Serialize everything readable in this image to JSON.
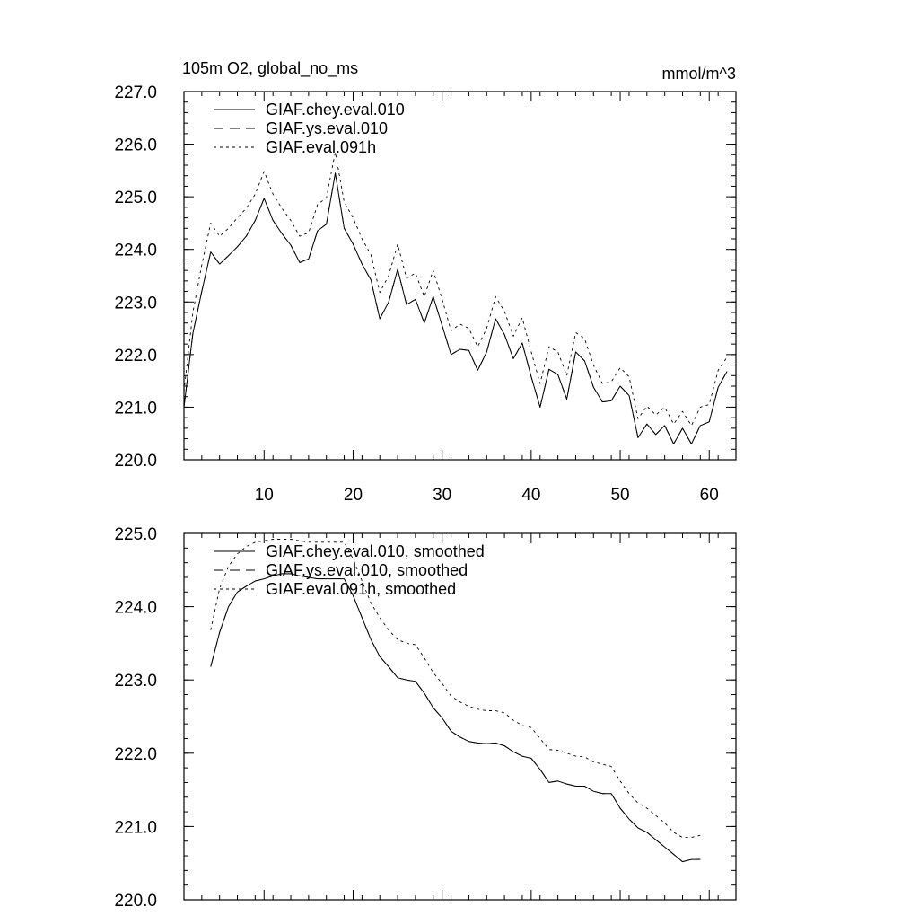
{
  "chart_data": [
    {
      "type": "line",
      "title": "105m O2, global_no_ms",
      "units": "mmol/m^3",
      "xlabel": "",
      "ylabel": "",
      "xlim": [
        1,
        63
      ],
      "ylim": [
        220.0,
        227.0
      ],
      "xticks": [
        10,
        20,
        30,
        40,
        50,
        60
      ],
      "yticks": [
        220.0,
        221.0,
        222.0,
        223.0,
        224.0,
        225.0,
        226.0,
        227.0
      ],
      "ytick_labels": [
        "220.0",
        "221.0",
        "222.0",
        "223.0",
        "224.0",
        "225.0",
        "226.0",
        "227.0"
      ],
      "legend_position": "top-left",
      "grid": false,
      "series": [
        {
          "name": "GIAF.chey.eval.010",
          "style": "solid",
          "x": [
            1,
            2,
            3,
            4,
            5,
            6,
            7,
            8,
            9,
            10,
            11,
            12,
            13,
            14,
            15,
            16,
            17,
            18,
            19,
            20,
            21,
            22,
            23,
            24,
            25,
            26,
            27,
            28,
            29,
            30,
            31,
            32,
            33,
            34,
            35,
            36,
            37,
            38,
            39,
            40,
            41,
            42,
            43,
            44,
            45,
            46,
            47,
            48,
            49,
            50,
            51,
            52,
            53,
            54,
            55,
            56,
            57,
            58,
            59,
            60,
            61,
            62
          ],
          "y": [
            221.0,
            222.4,
            223.2,
            223.95,
            223.72,
            223.88,
            224.05,
            224.25,
            224.55,
            224.97,
            224.55,
            224.3,
            224.08,
            223.75,
            223.82,
            224.35,
            224.48,
            225.45,
            224.4,
            224.1,
            223.72,
            223.42,
            222.68,
            223.0,
            223.62,
            222.95,
            223.05,
            222.6,
            223.1,
            222.55,
            222.0,
            222.1,
            222.08,
            221.7,
            222.05,
            222.68,
            222.38,
            221.92,
            222.22,
            221.58,
            221.0,
            221.72,
            221.62,
            221.15,
            222.05,
            221.88,
            221.38,
            221.1,
            221.12,
            221.4,
            221.22,
            220.42,
            220.68,
            220.48,
            220.65,
            220.3,
            220.6,
            220.3,
            220.65,
            220.72,
            221.38,
            221.68
          ]
        },
        {
          "name": "GIAF.ys.eval.010",
          "style": "dashed",
          "x": [
            1,
            2,
            3,
            4,
            5,
            6,
            7,
            8,
            9,
            10,
            11,
            12,
            13,
            14,
            15,
            16,
            17,
            18,
            19,
            20,
            21,
            22,
            23,
            24,
            25,
            26,
            27,
            28,
            29,
            30,
            31,
            32,
            33,
            34,
            35,
            36,
            37,
            38,
            39,
            40,
            41,
            42,
            43,
            44,
            45,
            46,
            47,
            48,
            49,
            50,
            51,
            52,
            53,
            54,
            55,
            56,
            57,
            58,
            59,
            60,
            61,
            62
          ],
          "y": [
            221.0,
            222.4,
            223.2,
            223.95,
            223.72,
            223.88,
            224.05,
            224.25,
            224.55,
            224.97,
            224.55,
            224.3,
            224.08,
            223.75,
            223.82,
            224.35,
            224.48,
            225.45,
            224.4,
            224.1,
            223.72,
            223.42,
            222.68,
            223.0,
            223.62,
            222.95,
            223.05,
            222.6,
            223.1,
            222.55,
            222.0,
            222.1,
            222.08,
            221.7,
            222.05,
            222.68,
            222.38,
            221.92,
            222.22,
            221.58,
            221.0,
            221.72,
            221.62,
            221.15,
            222.05,
            221.88,
            221.38,
            221.1,
            221.12,
            221.4,
            221.22,
            220.42,
            220.68,
            220.48,
            220.65,
            220.3,
            220.6,
            220.3,
            220.65,
            220.72,
            221.38,
            221.68
          ]
        },
        {
          "name": "GIAF.eval.091h",
          "style": "dotted",
          "x": [
            1,
            2,
            3,
            4,
            5,
            6,
            7,
            8,
            9,
            10,
            11,
            12,
            13,
            14,
            15,
            16,
            17,
            18,
            19,
            20,
            21,
            22,
            23,
            24,
            25,
            26,
            27,
            28,
            29,
            30,
            31,
            32,
            33,
            34,
            35,
            36,
            37,
            38,
            39,
            40,
            41,
            42,
            43,
            44,
            45,
            46,
            47,
            48,
            49,
            50,
            51,
            52,
            53,
            54,
            55,
            56,
            57,
            58,
            59,
            60,
            61,
            62
          ],
          "y": [
            221.3,
            222.8,
            223.7,
            224.5,
            224.25,
            224.4,
            224.6,
            224.78,
            225.05,
            225.48,
            225.05,
            224.78,
            224.55,
            224.25,
            224.32,
            224.85,
            224.98,
            225.85,
            224.9,
            224.6,
            224.2,
            223.9,
            223.18,
            223.5,
            224.1,
            223.45,
            223.55,
            223.1,
            223.6,
            223.05,
            222.45,
            222.58,
            222.5,
            222.15,
            222.5,
            223.1,
            222.82,
            222.35,
            222.7,
            222.05,
            221.45,
            222.15,
            222.05,
            221.6,
            222.42,
            222.3,
            221.8,
            221.45,
            221.48,
            221.75,
            221.58,
            220.78,
            221.02,
            220.85,
            221.0,
            220.68,
            220.92,
            220.65,
            221.0,
            221.05,
            221.7,
            221.95
          ]
        }
      ]
    },
    {
      "type": "line",
      "title": "",
      "units": "",
      "xlabel": "",
      "ylabel": "",
      "xlim": [
        1,
        63
      ],
      "ylim": [
        220.0,
        225.0
      ],
      "xticks": [
        10,
        20,
        30,
        40,
        50,
        60
      ],
      "yticks": [
        220.0,
        221.0,
        222.0,
        223.0,
        224.0,
        225.0
      ],
      "ytick_labels": [
        "220.0",
        "221.0",
        "222.0",
        "223.0",
        "224.0",
        "225.0"
      ],
      "legend_position": "top-left",
      "grid": false,
      "series": [
        {
          "name": "GIAF.chey.eval.010, smoothed",
          "style": "solid",
          "x": [
            4,
            5,
            6,
            7,
            8,
            9,
            10,
            11,
            12,
            13,
            14,
            15,
            16,
            17,
            18,
            19,
            20,
            21,
            22,
            23,
            24,
            25,
            26,
            27,
            28,
            29,
            30,
            31,
            32,
            33,
            34,
            35,
            36,
            37,
            38,
            39,
            40,
            41,
            42,
            43,
            44,
            45,
            46,
            47,
            48,
            49,
            50,
            51,
            52,
            53,
            54,
            55,
            56,
            57,
            58,
            59
          ],
          "y": [
            223.18,
            223.65,
            224.0,
            224.2,
            224.28,
            224.35,
            224.38,
            224.42,
            224.45,
            224.45,
            224.42,
            224.4,
            224.38,
            224.38,
            224.38,
            224.38,
            224.15,
            223.85,
            223.55,
            223.32,
            223.18,
            223.03,
            223.0,
            222.98,
            222.82,
            222.62,
            222.48,
            222.3,
            222.22,
            222.16,
            222.14,
            222.13,
            222.14,
            222.1,
            222.02,
            221.96,
            221.93,
            221.78,
            221.6,
            221.62,
            221.58,
            221.55,
            221.55,
            221.48,
            221.45,
            221.45,
            221.25,
            221.1,
            220.98,
            220.92,
            220.82,
            220.72,
            220.62,
            220.52,
            220.55,
            220.55
          ]
        },
        {
          "name": "GIAF.ys.eval.010, smoothed",
          "style": "dashed",
          "x": [
            4,
            5,
            6,
            7,
            8,
            9,
            10,
            11,
            12,
            13,
            14,
            15,
            16,
            17,
            18,
            19,
            20,
            21,
            22,
            23,
            24,
            25,
            26,
            27,
            28,
            29,
            30,
            31,
            32,
            33,
            34,
            35,
            36,
            37,
            38,
            39,
            40,
            41,
            42,
            43,
            44,
            45,
            46,
            47,
            48,
            49,
            50,
            51,
            52,
            53,
            54,
            55,
            56,
            57,
            58,
            59
          ],
          "y": [
            223.18,
            223.65,
            224.0,
            224.2,
            224.28,
            224.35,
            224.38,
            224.42,
            224.45,
            224.45,
            224.42,
            224.4,
            224.38,
            224.38,
            224.38,
            224.38,
            224.15,
            223.85,
            223.55,
            223.32,
            223.18,
            223.03,
            223.0,
            222.98,
            222.82,
            222.62,
            222.48,
            222.3,
            222.22,
            222.16,
            222.14,
            222.13,
            222.14,
            222.1,
            222.02,
            221.96,
            221.93,
            221.78,
            221.6,
            221.62,
            221.58,
            221.55,
            221.55,
            221.48,
            221.45,
            221.45,
            221.25,
            221.1,
            220.98,
            220.92,
            220.82,
            220.72,
            220.62,
            220.52,
            220.55,
            220.55
          ]
        },
        {
          "name": "GIAF.eval.091h, smoothed",
          "style": "dotted",
          "x": [
            4,
            5,
            6,
            7,
            8,
            9,
            10,
            11,
            12,
            13,
            14,
            15,
            16,
            17,
            18,
            19,
            20,
            21,
            22,
            23,
            24,
            25,
            26,
            27,
            28,
            29,
            30,
            31,
            32,
            33,
            34,
            35,
            36,
            37,
            38,
            39,
            40,
            41,
            42,
            43,
            44,
            45,
            46,
            47,
            48,
            49,
            50,
            51,
            52,
            53,
            54,
            55,
            56,
            57,
            58,
            59
          ],
          "y": [
            223.68,
            224.25,
            224.55,
            224.72,
            224.82,
            224.88,
            224.9,
            224.92,
            224.92,
            224.92,
            224.9,
            224.88,
            224.88,
            224.88,
            224.88,
            224.88,
            224.65,
            224.35,
            224.05,
            223.85,
            223.68,
            223.55,
            223.5,
            223.48,
            223.3,
            223.1,
            222.95,
            222.78,
            222.7,
            222.64,
            222.6,
            222.58,
            222.58,
            222.55,
            222.45,
            222.38,
            222.35,
            222.2,
            222.05,
            222.04,
            222.0,
            221.96,
            221.95,
            221.88,
            221.85,
            221.82,
            221.62,
            221.45,
            221.32,
            221.25,
            221.15,
            221.05,
            220.92,
            220.85,
            220.85,
            220.88
          ]
        }
      ]
    }
  ]
}
